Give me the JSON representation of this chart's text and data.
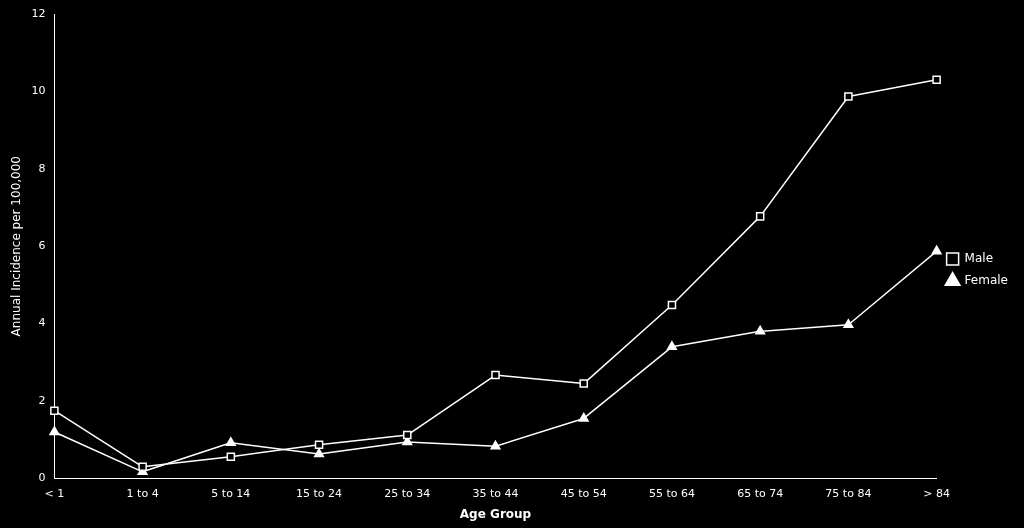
{
  "chart_data": {
    "type": "line",
    "xlabel": "Age Group",
    "ylabel": "Annual Incidence per 100,000",
    "categories": [
      "< 1",
      "1 to 4",
      "5 to 14",
      "15 to 24",
      "25 to 34",
      "35 to 44",
      "45 to 54",
      "55 to 64",
      "65 to 74",
      "75 to 84",
      "> 84"
    ],
    "series": [
      {
        "name": "Male",
        "color": "#ffffff",
        "marker": "square",
        "values": [
          1.75,
          0.3,
          0.56,
          0.87,
          1.12,
          2.67,
          2.45,
          4.48,
          6.77,
          9.87,
          10.3
        ]
      },
      {
        "name": "Female",
        "color": "#ffffff",
        "marker": "triangle",
        "values": [
          1.2,
          0.17,
          0.92,
          0.63,
          0.94,
          0.83,
          1.55,
          3.4,
          3.8,
          3.97,
          5.87
        ]
      }
    ],
    "ylim": [
      0,
      12
    ],
    "yticks": [
      0,
      2,
      4,
      6,
      8,
      10,
      12
    ],
    "grid": false,
    "legend": "right",
    "line_style": "solid"
  }
}
